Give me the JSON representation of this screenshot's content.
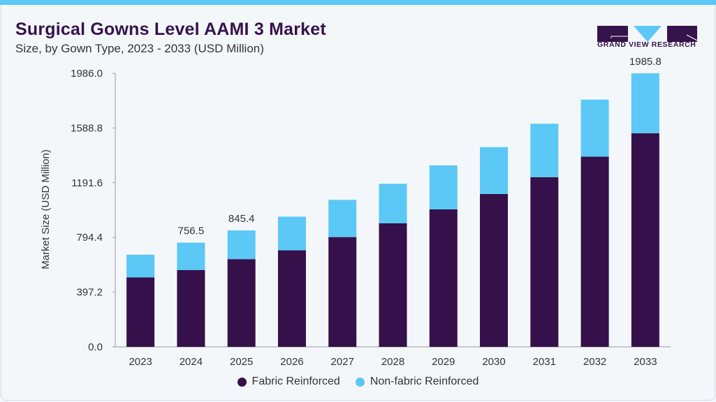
{
  "header": {
    "title": "Surgical Gowns Level AAMI 3 Market",
    "subtitle": "Size, by Gown Type, 2023 - 2033 (USD Million)"
  },
  "logo": {
    "text": "GRAND VIEW RESEARCH"
  },
  "colors": {
    "fabric": "#35104a",
    "nonfabric": "#5bc8f5",
    "accent": "#5bc8f5"
  },
  "chart_data": {
    "type": "bar",
    "stacked": true,
    "title": "Surgical Gowns Level AAMI 3 Market",
    "ylabel": "Market Size (USD Million)",
    "xlabel": "",
    "ylim": [
      0,
      1986.0
    ],
    "yticks": [
      "0.0",
      "397.2",
      "794.4",
      "1191.6",
      "1588.8",
      "1986.0"
    ],
    "categories": [
      "2023",
      "2024",
      "2025",
      "2026",
      "2027",
      "2028",
      "2029",
      "2030",
      "2031",
      "2032",
      "2033"
    ],
    "series": [
      {
        "name": "Fabric Reinforced",
        "color": "#35104a",
        "values": [
          504,
          558,
          637,
          701,
          797,
          897,
          998,
          1110,
          1232,
          1381,
          1551
        ]
      },
      {
        "name": "Non-fabric Reinforced",
        "color": "#5bc8f5",
        "values": [
          165,
          198.5,
          208.4,
          244,
          270,
          287,
          319,
          340,
          388,
          414,
          434.8
        ]
      }
    ],
    "data_labels": [
      {
        "category": "2024",
        "text": "756.5"
      },
      {
        "category": "2025",
        "text": "845.4"
      },
      {
        "category": "2033",
        "text": "1985.8"
      }
    ],
    "legend": "bottom",
    "grid": false
  }
}
